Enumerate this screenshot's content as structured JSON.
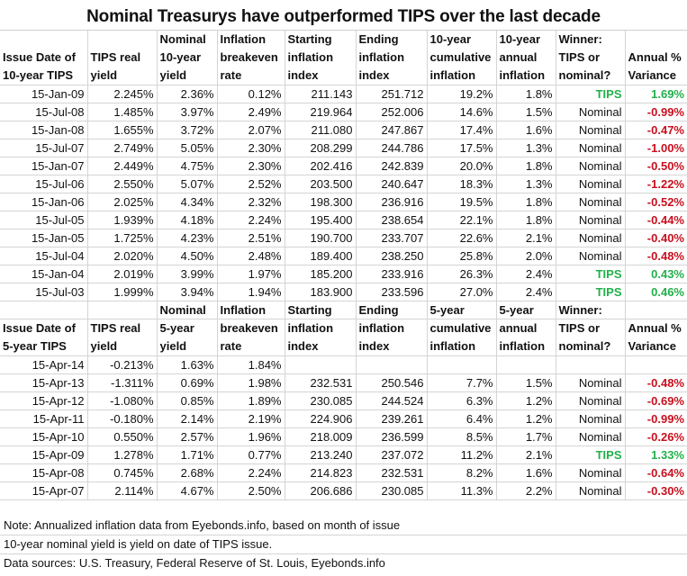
{
  "title": "Nominal Treasurys have outperformed TIPS over the last decade",
  "colors": {
    "tips_green": "#22b04b",
    "negative_red": "#c8101e",
    "gridline": "#d4d4d4"
  },
  "table10": {
    "headers": [
      [
        "",
        "Issue Date of",
        "10-year TIPS"
      ],
      [
        "",
        "TIPS real",
        "yield"
      ],
      [
        "Nominal",
        "10-year",
        "yield"
      ],
      [
        "Inflation",
        "breakeven",
        "rate"
      ],
      [
        "Starting",
        "inflation",
        "index"
      ],
      [
        "Ending",
        "inflation",
        "index"
      ],
      [
        "10-year",
        "cumulative",
        "inflation"
      ],
      [
        "10-year",
        "annual",
        "inflation"
      ],
      [
        "Winner:",
        "TIPS or",
        "nominal?"
      ],
      [
        "",
        "Annual %",
        "Variance"
      ]
    ],
    "rows": [
      [
        "15-Jan-09",
        "2.245%",
        "2.36%",
        "0.12%",
        "211.143",
        "251.712",
        "19.2%",
        "1.8%",
        "TIPS",
        "1.69%"
      ],
      [
        "15-Jul-08",
        "1.485%",
        "3.97%",
        "2.49%",
        "219.964",
        "252.006",
        "14.6%",
        "1.5%",
        "Nominal",
        "-0.99%"
      ],
      [
        "15-Jan-08",
        "1.655%",
        "3.72%",
        "2.07%",
        "211.080",
        "247.867",
        "17.4%",
        "1.6%",
        "Nominal",
        "-0.47%"
      ],
      [
        "15-Jul-07",
        "2.749%",
        "5.05%",
        "2.30%",
        "208.299",
        "244.786",
        "17.5%",
        "1.3%",
        "Nominal",
        "-1.00%"
      ],
      [
        "15-Jan-07",
        "2.449%",
        "4.75%",
        "2.30%",
        "202.416",
        "242.839",
        "20.0%",
        "1.8%",
        "Nominal",
        "-0.50%"
      ],
      [
        "15-Jul-06",
        "2.550%",
        "5.07%",
        "2.52%",
        "203.500",
        "240.647",
        "18.3%",
        "1.3%",
        "Nominal",
        "-1.22%"
      ],
      [
        "15-Jan-06",
        "2.025%",
        "4.34%",
        "2.32%",
        "198.300",
        "236.916",
        "19.5%",
        "1.8%",
        "Nominal",
        "-0.52%"
      ],
      [
        "15-Jul-05",
        "1.939%",
        "4.18%",
        "2.24%",
        "195.400",
        "238.654",
        "22.1%",
        "1.8%",
        "Nominal",
        "-0.44%"
      ],
      [
        "15-Jan-05",
        "1.725%",
        "4.23%",
        "2.51%",
        "190.700",
        "233.707",
        "22.6%",
        "2.1%",
        "Nominal",
        "-0.40%"
      ],
      [
        "15-Jul-04",
        "2.020%",
        "4.50%",
        "2.48%",
        "189.400",
        "238.250",
        "25.8%",
        "2.0%",
        "Nominal",
        "-0.48%"
      ],
      [
        "15-Jan-04",
        "2.019%",
        "3.99%",
        "1.97%",
        "185.200",
        "233.916",
        "26.3%",
        "2.4%",
        "TIPS",
        "0.43%"
      ],
      [
        "15-Jul-03",
        "1.999%",
        "3.94%",
        "1.94%",
        "183.900",
        "233.596",
        "27.0%",
        "2.4%",
        "TIPS",
        "0.46%"
      ]
    ]
  },
  "table5": {
    "headers": [
      [
        "",
        "Issue Date of",
        "5-year TIPS"
      ],
      [
        "",
        "TIPS real",
        "yield"
      ],
      [
        "Nominal",
        "5-year",
        "yield"
      ],
      [
        "Inflation",
        "breakeven",
        "rate"
      ],
      [
        "Starting",
        "inflation",
        "index"
      ],
      [
        "Ending",
        "inflation",
        "index"
      ],
      [
        "5-year",
        "cumulative",
        "inflation"
      ],
      [
        "5-year",
        "annual",
        "inflation"
      ],
      [
        "Winner:",
        "TIPS or",
        "nominal?"
      ],
      [
        "",
        "Annual %",
        "Variance"
      ]
    ],
    "rows": [
      [
        "15-Apr-14",
        "-0.213%",
        "1.63%",
        "1.84%",
        "",
        "",
        "",
        "",
        "",
        ""
      ],
      [
        "15-Apr-13",
        "-1.311%",
        "0.69%",
        "1.98%",
        "232.531",
        "250.546",
        "7.7%",
        "1.5%",
        "Nominal",
        "-0.48%"
      ],
      [
        "15-Apr-12",
        "-1.080%",
        "0.85%",
        "1.89%",
        "230.085",
        "244.524",
        "6.3%",
        "1.2%",
        "Nominal",
        "-0.69%"
      ],
      [
        "15-Apr-11",
        "-0.180%",
        "2.14%",
        "2.19%",
        "224.906",
        "239.261",
        "6.4%",
        "1.2%",
        "Nominal",
        "-0.99%"
      ],
      [
        "15-Apr-10",
        "0.550%",
        "2.57%",
        "1.96%",
        "218.009",
        "236.599",
        "8.5%",
        "1.7%",
        "Nominal",
        "-0.26%"
      ],
      [
        "15-Apr-09",
        "1.278%",
        "1.71%",
        "0.77%",
        "213.240",
        "237.072",
        "11.2%",
        "2.1%",
        "TIPS",
        "1.33%"
      ],
      [
        "15-Apr-08",
        "0.745%",
        "2.68%",
        "2.24%",
        "214.823",
        "232.531",
        "8.2%",
        "1.6%",
        "Nominal",
        "-0.64%"
      ],
      [
        "15-Apr-07",
        "2.114%",
        "4.67%",
        "2.50%",
        "206.686",
        "230.085",
        "11.3%",
        "2.2%",
        "Nominal",
        "-0.30%"
      ]
    ]
  },
  "notes": [
    "Note: Annualized inflation data from Eyebonds.info, based on month of issue",
    "10-year nominal yield is yield on date of TIPS issue.",
    "Data sources: U.S. Treasury, Federal Reserve of St. Louis, Eyebonds.info"
  ]
}
